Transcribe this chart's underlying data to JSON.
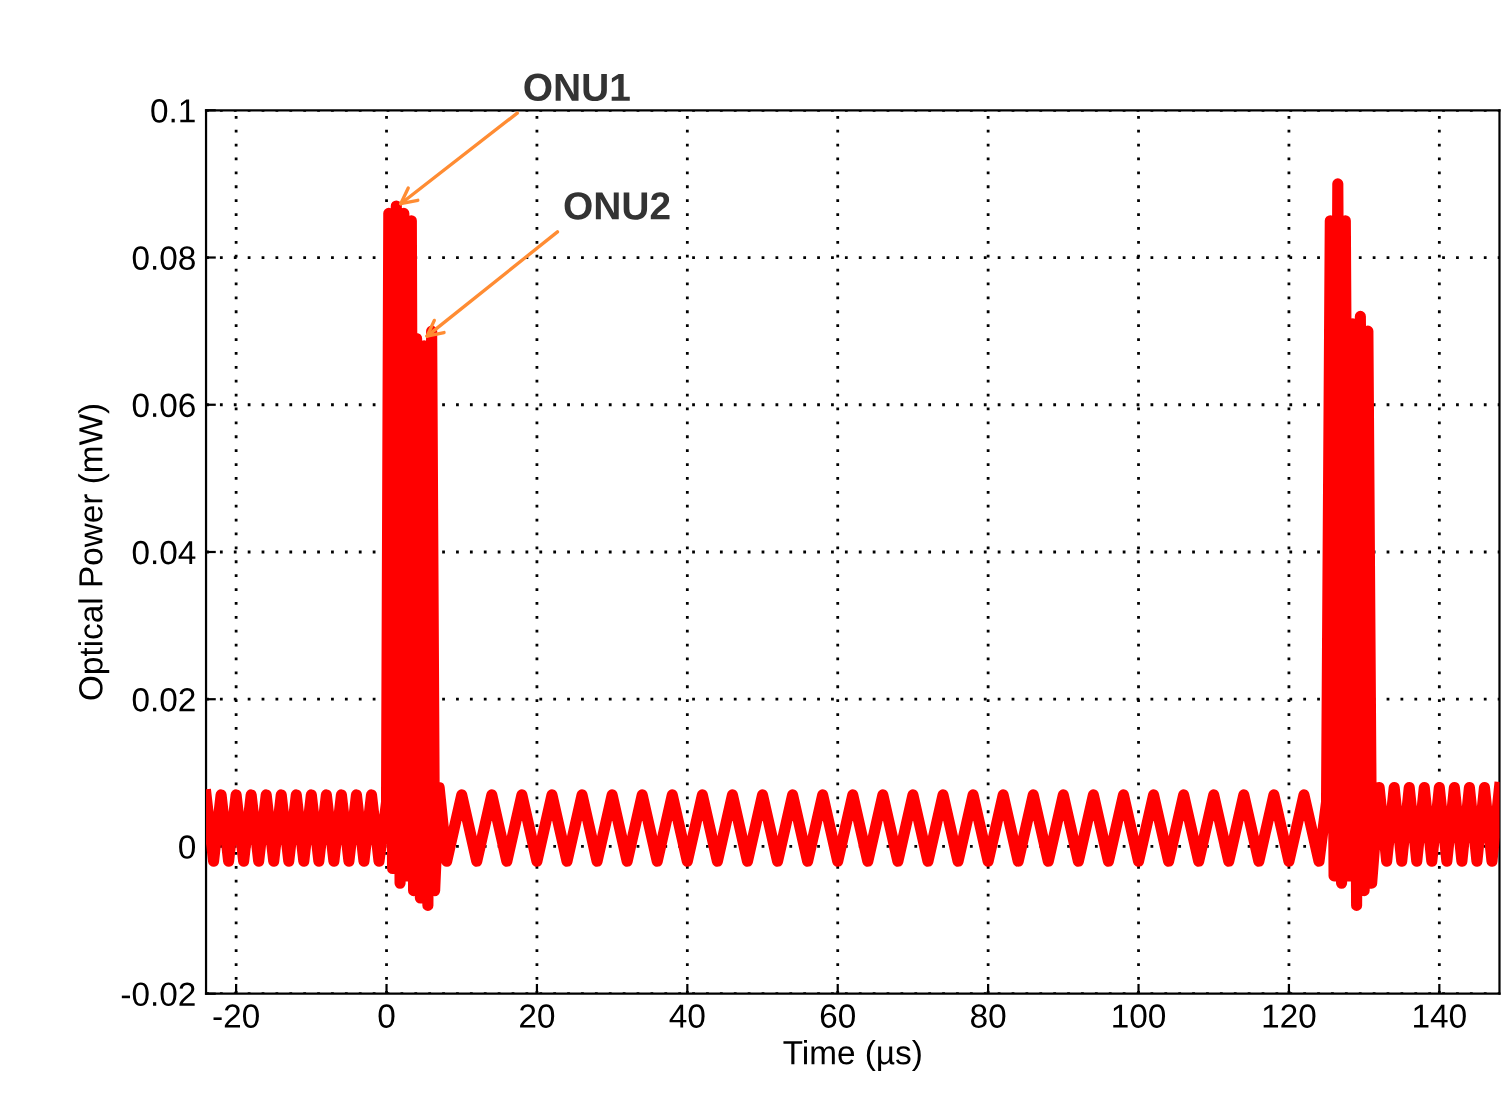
{
  "chart_data": {
    "type": "line",
    "xlabel": "Time (µs)",
    "ylabel": "Optical Power (mW)",
    "xlim": [
      -24,
      148
    ],
    "ylim": [
      -0.02,
      0.1
    ],
    "xticks": [
      -20,
      0,
      20,
      40,
      60,
      80,
      100,
      120,
      140
    ],
    "yticks": [
      -0.02,
      0,
      0.02,
      0.04,
      0.06,
      0.08,
      0.1
    ],
    "grid": true,
    "line_style": "solid",
    "marker": "none",
    "annotations": [
      {
        "text": "ONU1",
        "x": 1.5,
        "y": 0.087
      },
      {
        "text": "ONU2",
        "x": 5,
        "y": 0.069
      }
    ],
    "series": [
      {
        "color": "#ff0000",
        "x": [
          -24,
          -23,
          -22,
          -21,
          -20,
          -19,
          -18,
          -17,
          -16,
          -15,
          -14,
          -13,
          -12,
          -11,
          -10,
          -9,
          -8,
          -7,
          -6,
          -5,
          -4,
          -3,
          -2,
          -1,
          0,
          0.3,
          0.8,
          1.3,
          1.8,
          2.3,
          2.8,
          3.3,
          3.6,
          4.0,
          4.5,
          5.0,
          5.5,
          6.0,
          6.4,
          7,
          8,
          10,
          12,
          14,
          16,
          18,
          20,
          22,
          24,
          26,
          28,
          30,
          32,
          34,
          36,
          38,
          40,
          42,
          44,
          46,
          48,
          50,
          52,
          54,
          56,
          58,
          60,
          62,
          64,
          66,
          68,
          70,
          72,
          74,
          76,
          78,
          80,
          82,
          84,
          86,
          88,
          90,
          92,
          94,
          96,
          98,
          100,
          102,
          104,
          106,
          108,
          110,
          112,
          114,
          116,
          118,
          120,
          122,
          124,
          125,
          125.5,
          126,
          126.5,
          127,
          127.5,
          128,
          128.5,
          129,
          129.5,
          130,
          130.5,
          131,
          132,
          133,
          134,
          135,
          136,
          137,
          138,
          139,
          140,
          141,
          142,
          143,
          144,
          145,
          146,
          147,
          148
        ],
        "values": [
          0.007,
          -0.002,
          0.007,
          -0.002,
          0.007,
          -0.002,
          0.007,
          -0.002,
          0.007,
          -0.002,
          0.007,
          -0.002,
          0.007,
          -0.002,
          0.007,
          -0.002,
          0.007,
          -0.002,
          0.007,
          -0.002,
          0.007,
          -0.002,
          0.007,
          -0.002,
          0.006,
          0.086,
          -0.003,
          0.087,
          -0.005,
          0.086,
          -0.004,
          0.085,
          -0.006,
          0.069,
          -0.007,
          0.068,
          -0.008,
          0.07,
          -0.006,
          0.008,
          -0.002,
          0.007,
          -0.002,
          0.007,
          -0.002,
          0.007,
          -0.002,
          0.007,
          -0.002,
          0.007,
          -0.002,
          0.007,
          -0.002,
          0.007,
          -0.002,
          0.007,
          -0.002,
          0.007,
          -0.002,
          0.007,
          -0.002,
          0.007,
          -0.002,
          0.007,
          -0.002,
          0.007,
          -0.002,
          0.007,
          -0.002,
          0.007,
          -0.002,
          0.007,
          -0.002,
          0.007,
          -0.002,
          0.007,
          -0.002,
          0.007,
          -0.002,
          0.007,
          -0.002,
          0.007,
          -0.002,
          0.007,
          -0.002,
          0.007,
          -0.002,
          0.007,
          -0.002,
          0.007,
          -0.002,
          0.007,
          -0.002,
          0.007,
          -0.002,
          0.007,
          -0.002,
          0.007,
          -0.002,
          0.006,
          0.085,
          -0.004,
          0.09,
          -0.005,
          0.085,
          -0.004,
          0.071,
          -0.008,
          0.072,
          -0.006,
          0.07,
          -0.005,
          0.008,
          -0.002,
          0.008,
          -0.002,
          0.008,
          -0.002,
          0.008,
          -0.002,
          0.008,
          -0.002,
          0.008,
          -0.002,
          0.008,
          -0.002,
          0.008,
          -0.002,
          0.008
        ]
      }
    ]
  }
}
